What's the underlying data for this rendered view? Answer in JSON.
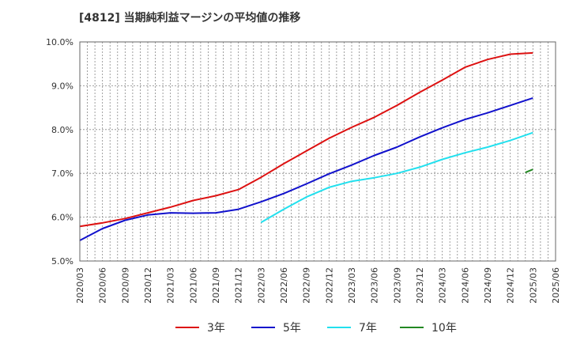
{
  "title": "[4812]  当期純利益マージンの平均値の推移",
  "chart_data": {
    "type": "line",
    "title": "[4812]  当期純利益マージンの平均値の推移",
    "xlabel": "",
    "ylabel": "",
    "ylim": [
      5.0,
      10.0
    ],
    "yticks": [
      "5.0%",
      "6.0%",
      "7.0%",
      "8.0%",
      "9.0%",
      "10.0%"
    ],
    "yunit": "%",
    "categories": [
      "2020/03",
      "2020/06",
      "2020/09",
      "2020/12",
      "2021/03",
      "2021/06",
      "2021/09",
      "2021/12",
      "2022/03",
      "2022/06",
      "2022/09",
      "2022/12",
      "2023/03",
      "2023/06",
      "2023/09",
      "2023/12",
      "2024/03",
      "2024/06",
      "2024/09",
      "2024/12",
      "2025/03",
      "2025/06"
    ],
    "grid": true,
    "legend_position": "bottom",
    "series": [
      {
        "name": "3年",
        "color": "#dd1111",
        "values": [
          5.79,
          5.87,
          5.97,
          6.1,
          6.23,
          6.38,
          6.49,
          6.63,
          6.91,
          7.22,
          7.51,
          7.8,
          8.05,
          8.28,
          8.55,
          8.85,
          9.13,
          9.42,
          9.6,
          9.72,
          9.75,
          null
        ]
      },
      {
        "name": "5年",
        "color": "#1111cc",
        "values": [
          5.47,
          5.74,
          5.93,
          6.05,
          6.1,
          6.09,
          6.1,
          6.18,
          6.35,
          6.54,
          6.76,
          6.99,
          7.19,
          7.41,
          7.6,
          7.83,
          8.04,
          8.23,
          8.38,
          8.55,
          8.72,
          null
        ]
      },
      {
        "name": "7年",
        "color": "#22e0ee",
        "values": [
          null,
          null,
          null,
          null,
          null,
          null,
          null,
          null,
          5.88,
          6.18,
          6.46,
          6.68,
          6.82,
          6.9,
          7.0,
          7.14,
          7.32,
          7.47,
          7.6,
          7.75,
          7.93,
          null
        ]
      },
      {
        "name": "10年",
        "color": "#228822",
        "values": [
          null,
          null,
          null,
          null,
          null,
          null,
          null,
          null,
          null,
          null,
          null,
          null,
          null,
          null,
          null,
          null,
          null,
          null,
          null,
          null,
          7.05,
          null
        ],
        "short_segment": [
          7.02,
          7.09
        ]
      }
    ]
  }
}
